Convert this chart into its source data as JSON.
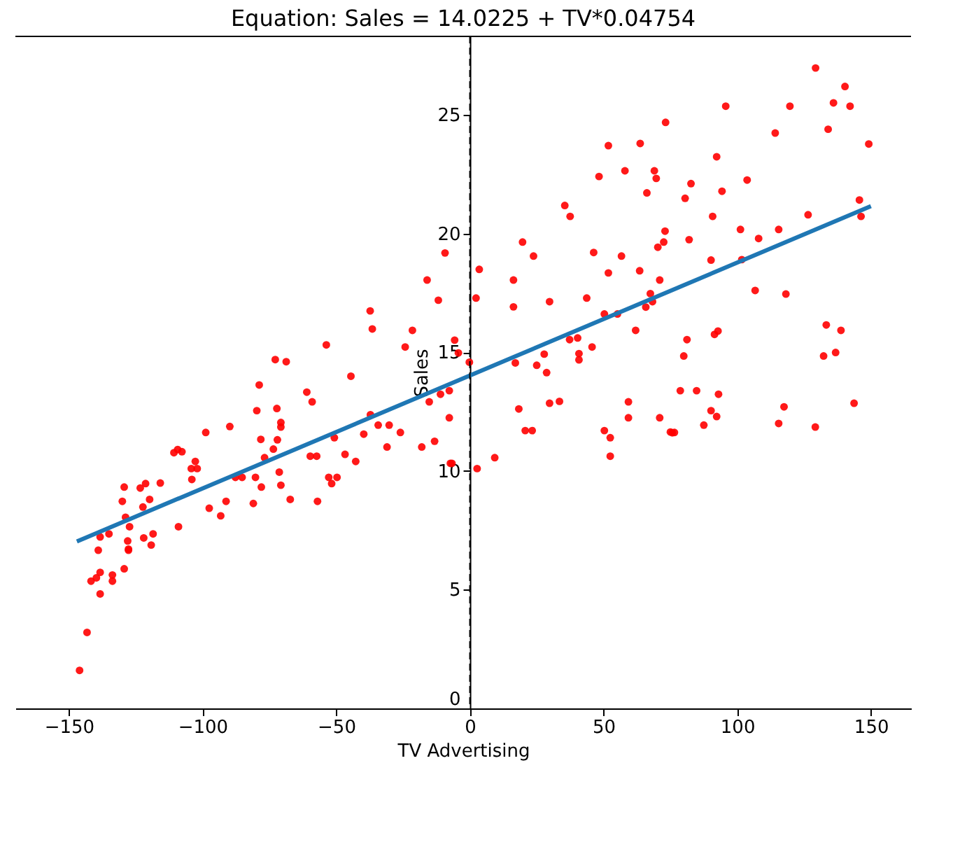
{
  "chart_data": {
    "type": "scatter",
    "title": "Equation: Sales = 14.0225 + TV*0.04754",
    "xlabel": "TV Advertising",
    "ylabel": "Sales",
    "xlim": [
      -170,
      165
    ],
    "ylim": [
      0,
      28.3
    ],
    "xticks": [
      -150,
      -100,
      -50,
      0,
      50,
      100,
      150
    ],
    "yticks": [
      0,
      5,
      10,
      15,
      20,
      25
    ],
    "grid": false,
    "series": [
      {
        "marker": "circle",
        "color": "#ff0000",
        "x": [
          -146,
          -143.2,
          -141.7,
          -139.7,
          -138.3,
          -138.3,
          -139,
          -138.3,
          -135,
          -133.7,
          -133.7,
          -129.3,
          -130,
          -129.3,
          -128.8,
          -128,
          -127.7,
          -127.7,
          -127.3,
          -123.3,
          -122.3,
          -122,
          -121.3,
          -119.8,
          -119.2,
          -118.5,
          -115.8,
          -110.7,
          -109.3,
          -107.7,
          -109,
          -104,
          -104.2,
          -102.7,
          -102,
          -98.8,
          -97.5,
          -93.2,
          -91.2,
          -89.8,
          -87.7,
          -85.2,
          -81,
          -80.2,
          -79.7,
          -78.8,
          -78.2,
          -78,
          -76.8,
          -73.5,
          -72.2,
          -72,
          -71.3,
          -70.7,
          -70.7,
          -70.7,
          -67.2,
          -61,
          -59,
          -59.7,
          -57.3,
          -57,
          -52.8,
          -51.7,
          -49.7,
          -50.7,
          -46.7,
          -44.5,
          -42.7,
          -39.7,
          -37.2,
          -34.3,
          -30.2,
          -31,
          -26,
          -18,
          -15.2,
          -13.2,
          -11,
          -7.7,
          -7.7,
          -7.3,
          -6.7,
          2.7,
          -9.3,
          -16,
          -11.8,
          3.5,
          2.3,
          -37.3,
          -36.5,
          -21.5,
          -53.7,
          -24.2,
          -5.7,
          -4.3,
          -0.2,
          -72.8,
          -68.7,
          16.3,
          16.3,
          19.7,
          23.8,
          29.8,
          17,
          25,
          27.8,
          28.7,
          35.5,
          37.5,
          37.3,
          40.3,
          40.8,
          40.8,
          43.7,
          45.7,
          46.3,
          48.3,
          51.8,
          51.8,
          50.3,
          55.2,
          56.7,
          58,
          62,
          63.5,
          63.7,
          66.2,
          65.8,
          67.5,
          68.3,
          69,
          69.7,
          70.3,
          72.5,
          73,
          73.2,
          71,
          80.5,
          82,
          82.7,
          90.2,
          90.8,
          92.3,
          94.3,
          95.7,
          101.2,
          101.7,
          103.7,
          106.7,
          108,
          115.5,
          114.2,
          118.2,
          119.7,
          126.5,
          129.3,
          134,
          136,
          140.3,
          142.2,
          145.7,
          146.3,
          149.2,
          133.3,
          138.8,
          132.3,
          136.8,
          91.5,
          92.8,
          81.2,
          80,
          9.3,
          18.3,
          20.7,
          23.3,
          29.8,
          33.5,
          50.3,
          52.5,
          52.5,
          59.3,
          59.3,
          71,
          75,
          75.7,
          76.5,
          78.7,
          84.8,
          93,
          90.2,
          92.3,
          87.5,
          117.5,
          115.5,
          129.2,
          143.7
        ],
        "values": [
          1.6,
          3.2,
          5.36,
          5.5,
          5.73,
          4.82,
          6.66,
          7.22,
          7.35,
          5.62,
          5.36,
          5.88,
          8.72,
          9.32,
          8.05,
          7.05,
          6.71,
          6.66,
          7.65,
          9.28,
          8.48,
          7.18,
          9.47,
          8.8,
          6.88,
          7.35,
          9.49,
          10.77,
          10.9,
          10.81,
          7.65,
          9.64,
          10.1,
          10.4,
          10.1,
          11.62,
          8.43,
          8.11,
          8.72,
          11.87,
          9.73,
          9.73,
          8.63,
          9.73,
          12.54,
          13.62,
          11.33,
          9.32,
          10.56,
          10.92,
          12.63,
          11.31,
          9.95,
          12.04,
          11.85,
          9.4,
          8.8,
          13.32,
          12.91,
          10.62,
          10.62,
          8.72,
          9.73,
          9.47,
          9.73,
          11.4,
          10.7,
          13.99,
          10.4,
          11.55,
          12.37,
          11.93,
          11.93,
          11.01,
          11.62,
          11.01,
          12.91,
          11.25,
          13.23,
          13.38,
          12.24,
          10.32,
          10.32,
          10.1,
          19.18,
          18.04,
          17.19,
          18.49,
          17.28,
          16.74,
          15.98,
          15.92,
          15.31,
          15.22,
          15.51,
          14.97,
          14.58,
          14.69,
          14.6,
          18.04,
          16.91,
          19.64,
          19.05,
          17.13,
          14.55,
          14.45,
          14.92,
          14.14,
          21.18,
          20.72,
          15.53,
          15.6,
          14.94,
          14.68,
          17.28,
          15.22,
          19.2,
          22.4,
          23.7,
          18.34,
          16.61,
          16.61,
          19.05,
          22.64,
          15.92,
          18.43,
          23.79,
          21.71,
          16.9,
          17.47,
          17.13,
          22.64,
          22.32,
          19.42,
          19.64,
          20.1,
          24.68,
          18.04,
          21.48,
          19.74,
          22.1,
          18.88,
          20.72,
          23.23,
          21.78,
          25.36,
          20.17,
          18.9,
          22.25,
          17.6,
          19.79,
          20.17,
          24.23,
          17.45,
          25.36,
          20.79,
          26.97,
          24.39,
          25.5,
          26.19,
          25.36,
          21.41,
          20.72,
          23.77,
          16.15,
          15.92,
          14.84,
          14.99,
          15.75,
          15.89,
          15.53,
          14.84,
          10.56,
          12.61,
          11.7,
          11.7,
          12.85,
          12.93,
          11.7,
          11.4,
          10.62,
          12.91,
          12.24,
          12.24,
          11.64,
          11.61,
          11.62,
          13.38,
          13.38,
          13.23,
          12.54,
          12.29,
          11.93,
          12.7,
          12.0,
          11.85,
          12.85
        ]
      },
      {
        "type": "line",
        "color": "#1f77b4",
        "x": [
          -147,
          150
        ],
        "values": [
          7.03,
          21.15
        ]
      }
    ],
    "ref_lines": [
      {
        "axis": "x",
        "value": 0,
        "color": "#000000",
        "line_style": "dashed"
      }
    ]
  }
}
